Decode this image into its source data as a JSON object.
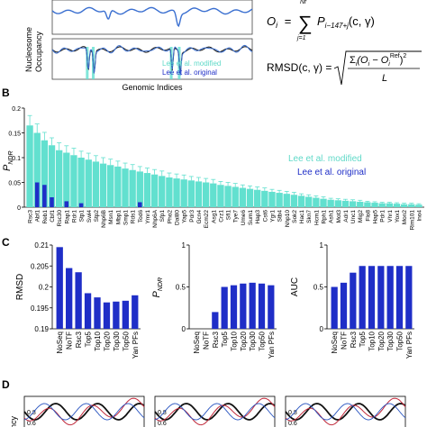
{
  "figure": {
    "panel_a": {
      "ylabel_top": "Nucleosome",
      "ylabel_bottom": "Occupancy",
      "xlabel": "Genomic Indices",
      "legend_modified": "Lee et al. modified",
      "legend_original": "Lee et al. original",
      "colors": {
        "occupancy_line": "#3a6fd0",
        "modified_fill": "#62e0cf",
        "original_fill": "#1f2ec7"
      }
    },
    "equations": {
      "oi_lhs": "O",
      "oi_lhs_sub": "i",
      "oi_eq": "=",
      "oi_sum_top": "Nf",
      "oi_sum_bottom": "j=1",
      "oi_term": "P",
      "oi_term_sub": "i−147+j",
      "oi_args": "(c, γ)",
      "rmsd_lhs": "RMSD(c, γ) =",
      "rmsd_num_sum": "Σ",
      "rmsd_num_sub": "i",
      "rmsd_num_body": "(O",
      "rmsd_num_body_sub": "i",
      "rmsd_num_minus": " − O",
      "rmsd_num_minus_sub": "i",
      "rmsd_num_sup_ref": "Ref",
      "rmsd_num_close": ")",
      "rmsd_num_sq": "2",
      "rmsd_den": "L"
    },
    "panel_letters": {
      "b": "B",
      "c": "C",
      "d": "D"
    }
  },
  "chart_data": [
    {
      "type": "bar",
      "panel": "B",
      "ylabel": "P_NDR",
      "ylim": [
        0,
        0.2
      ],
      "yticks": [
        0,
        0.05,
        0.1,
        0.15,
        0.2
      ],
      "legend": [
        "Lee et al. modified",
        "Lee et al. original"
      ],
      "legend_position": "right",
      "tick_labels": [
        "Rsc3",
        "Abf1",
        "Reb1",
        "Cbf1",
        "Rsc30",
        "Rap1",
        "Rdr1",
        "Stp1",
        "Swi4",
        "Stp2",
        "Nhp6B",
        "Msn1",
        "Mbp1",
        "Smp1",
        "Rds1",
        "Tod6",
        "Ymr1",
        "Nhp6A",
        "Sfp1",
        "Pho2",
        "Dal80",
        "Yap5",
        "Pdr3",
        "Gcn4",
        "Ecm22",
        "Asg1",
        "Crz1",
        "Sfl1",
        "Tye7",
        "Ume6",
        "Sum1",
        "Hap3",
        "Cst6",
        "Ygr1",
        "Stb4",
        "Nhp10",
        "Sok2",
        "Hac1",
        "Skn7",
        "Hcm1",
        "Rph1",
        "Ash1",
        "Mot3",
        "Adr1",
        "Unc1",
        "Mig2",
        "Flo8",
        "Hap5",
        "Pdr1",
        "Vhr1",
        "Yox1",
        "Mon2",
        "Rim101",
        "Ino4"
      ],
      "series": [
        {
          "name": "Lee et al. modified",
          "values": [
            0.165,
            0.15,
            0.135,
            0.125,
            0.115,
            0.11,
            0.105,
            0.1,
            0.096,
            0.092,
            0.088,
            0.085,
            0.082,
            0.078,
            0.075,
            0.072,
            0.069,
            0.066,
            0.063,
            0.06,
            0.058,
            0.056,
            0.054,
            0.052,
            0.05,
            0.048,
            0.045,
            0.043,
            0.041,
            0.039,
            0.037,
            0.035,
            0.033,
            0.031,
            0.029,
            0.027,
            0.025,
            0.023,
            0.021,
            0.019,
            0.017,
            0.015,
            0.014,
            0.013,
            0.012,
            0.011,
            0.01,
            0.009,
            0.008,
            0.008,
            0.007,
            0.006,
            0.006,
            0.005
          ],
          "errors": [
            0.02,
            0.018,
            0.016,
            0.015,
            0.015,
            0.014,
            0.014,
            0.013,
            0.013,
            0.012,
            0.012,
            0.012,
            0.011,
            0.011,
            0.011,
            0.01,
            0.01,
            0.01,
            0.01,
            0.009,
            0.009,
            0.009,
            0.008,
            0.008,
            0.008,
            0.008,
            0.007,
            0.007,
            0.007,
            0.006,
            0.006,
            0.006,
            0.006,
            0.005,
            0.005,
            0.005,
            0.005,
            0.004,
            0.004,
            0.004,
            0.004,
            0.003,
            0.003,
            0.003,
            0.003,
            0.003,
            0.002,
            0.002,
            0.002,
            0.002,
            0.002,
            0.002,
            0.002,
            0.002
          ]
        },
        {
          "name": "Lee et al. original",
          "values": [
            0,
            0.05,
            0.045,
            0.02,
            0,
            0.012,
            0,
            0.008,
            0,
            0,
            0,
            0,
            0,
            0,
            0,
            0.01,
            0,
            0,
            0,
            0,
            0,
            0,
            0,
            0,
            0,
            0,
            0,
            0,
            0,
            0,
            0,
            0,
            0,
            0,
            0,
            0,
            0,
            0,
            0,
            0,
            0,
            0,
            0,
            0,
            0,
            0,
            0,
            0,
            0,
            0,
            0,
            0,
            0,
            0
          ]
        }
      ]
    },
    {
      "type": "bar",
      "panel": "C-left",
      "ylabel": "RMSD",
      "ylim": [
        0.19,
        0.21
      ],
      "yticks": [
        0.19,
        0.195,
        0.2,
        0.205,
        0.21
      ],
      "categories": [
        "NoSeq",
        "NoTF",
        "Rsc3",
        "Top5",
        "Top10",
        "Top20",
        "Top30",
        "Top50",
        "Yan PFs"
      ],
      "values": [
        0.2095,
        0.2045,
        0.2035,
        0.1985,
        0.1975,
        0.1963,
        0.1965,
        0.1967,
        0.198
      ]
    },
    {
      "type": "bar",
      "panel": "C-middle",
      "ylabel": "P_NDR",
      "ylim": [
        0,
        1
      ],
      "yticks": [
        0,
        0.5,
        1
      ],
      "categories": [
        "NoSeq",
        "NoTF",
        "Rsc3",
        "Top5",
        "Top10",
        "Top20",
        "Top30",
        "Top50",
        "Yan PFs"
      ],
      "values": [
        0,
        0,
        0.2,
        0.5,
        0.52,
        0.54,
        0.55,
        0.54,
        0.52
      ]
    },
    {
      "type": "bar",
      "panel": "C-right",
      "ylabel": "AUC",
      "ylim": [
        0,
        1
      ],
      "yticks": [
        0,
        0.5,
        1
      ],
      "categories": [
        "NoSeq",
        "NoTF",
        "Rsc3",
        "Top5",
        "Top10",
        "Top20",
        "Top30",
        "Top50",
        "Yan PFs"
      ],
      "values": [
        0.5,
        0.55,
        0.67,
        0.75,
        0.75,
        0.75,
        0.75,
        0.75,
        0.75
      ]
    },
    {
      "type": "line",
      "panel": "D",
      "ylabel": "ncy",
      "yticks": [
        0.8,
        0.6
      ],
      "subplots": 3
    }
  ]
}
